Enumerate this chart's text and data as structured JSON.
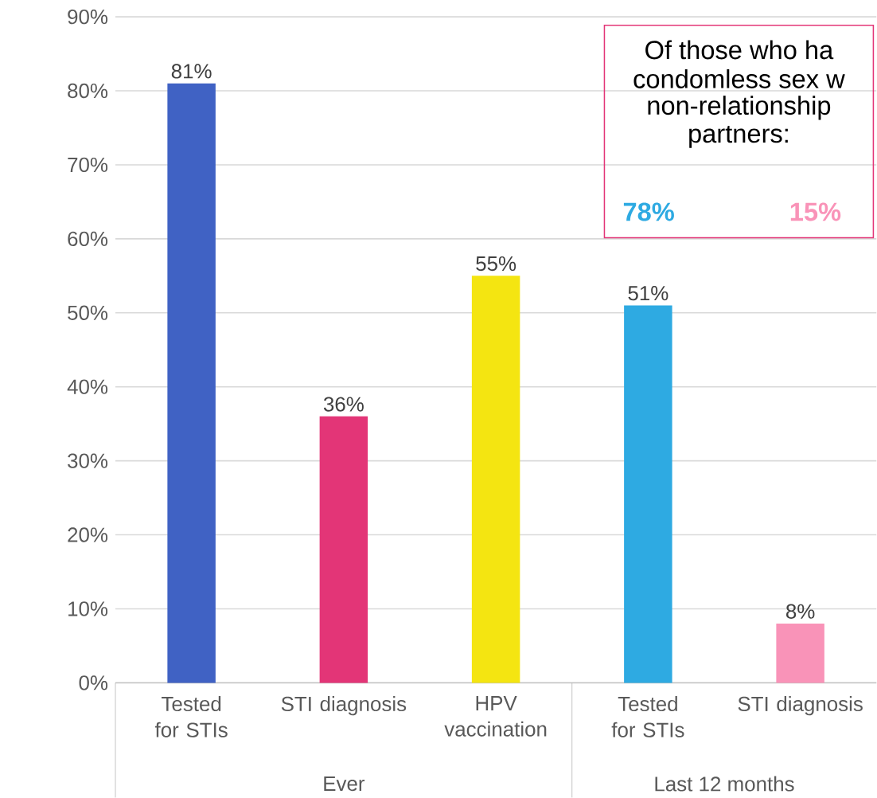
{
  "chart_data": {
    "type": "bar",
    "categories": [
      "Tested for STIs",
      "STI diagnosis",
      "HPV vaccination",
      "Tested for STIs",
      "STI diagnosis"
    ],
    "values": [
      81,
      36,
      55,
      51,
      8
    ],
    "colors": [
      "#4062c4",
      "#e33577",
      "#f4e511",
      "#2eaae2",
      "#f993b8"
    ],
    "value_labels": [
      "81%",
      "36%",
      "55%",
      "51%",
      "8%"
    ],
    "ylim": [
      0,
      90
    ],
    "yticks": [
      {
        "value": 0,
        "label": "0%"
      },
      {
        "value": 10,
        "label": "10%"
      },
      {
        "value": 20,
        "label": "20%"
      },
      {
        "value": 30,
        "label": "30%"
      },
      {
        "value": 40,
        "label": "40%"
      },
      {
        "value": 50,
        "label": "50%"
      },
      {
        "value": 60,
        "label": "60%"
      },
      {
        "value": 70,
        "label": "70%"
      },
      {
        "value": 80,
        "label": "80%"
      },
      {
        "value": 90,
        "label": "90%"
      }
    ],
    "grid": "y",
    "annotations": [
      "Ever",
      "Last 12 months",
      "Of those who ha",
      "condomless sex w",
      "non-relationship",
      "partners:",
      "78%",
      "15%"
    ]
  }
}
